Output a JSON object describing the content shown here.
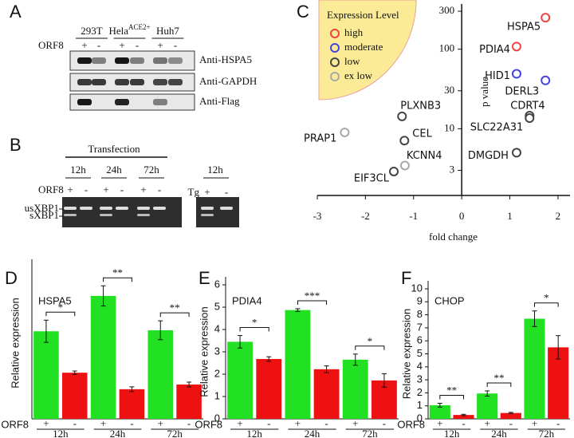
{
  "figure": {
    "A": {
      "panel": "A",
      "row_label": "ORF8",
      "cell_lines": [
        {
          "name": "293T"
        },
        {
          "name": "Hela",
          "sup": "ACE2+"
        },
        {
          "name": "Huh7"
        }
      ],
      "lanes": [
        "+",
        "-",
        "+",
        "-",
        "+",
        "-"
      ],
      "antibodies": [
        "Anti-HSPA5",
        "Anti-GAPDH",
        "Anti-Flag"
      ]
    },
    "B": {
      "panel": "B",
      "header": "Transfection",
      "times": [
        "12h",
        "24h",
        "72h"
      ],
      "row_label": "ORF8",
      "lanes": [
        "+",
        "-",
        "+",
        "-",
        "+",
        "-"
      ],
      "bands": [
        "usXBP1",
        "sXBP1"
      ],
      "control": {
        "time": "12h",
        "row_label": "Tg",
        "lanes": [
          "+",
          "-"
        ]
      }
    }
  },
  "chart_data": [
    {
      "type": "scatter",
      "panel": "C",
      "xlabel": "fold change",
      "ylabel": "p value",
      "xlim": [
        -3,
        2.25
      ],
      "ylim": [
        1.45,
        370
      ],
      "xticks": [
        -3,
        -2,
        -1,
        0,
        1,
        2
      ],
      "yticks": [
        3,
        10,
        30,
        100,
        300
      ],
      "log_y": true,
      "legend": {
        "title": "Expression Level",
        "position": "upper left"
      },
      "series": [
        {
          "name": "high",
          "color": "#ee4444",
          "x": [
            1.74,
            1.14
          ],
          "values": [
            249,
            108
          ],
          "labels": [
            "HSPA5",
            "PDIA4"
          ]
        },
        {
          "name": "moderate",
          "color": "#4444dd",
          "x": [
            1.14,
            1.74
          ],
          "values": [
            49,
            40.5
          ],
          "labels": [
            "HID1",
            "DERL3"
          ]
        },
        {
          "name": "low",
          "color": "#444444",
          "x": [
            1.41,
            1.41,
            1.14,
            -1.24,
            -1.19,
            -1.41
          ],
          "values": [
            14.6,
            13.6,
            5,
            14.3,
            7.1,
            2.9
          ],
          "labels": [
            "CDRT4",
            "SLC22A31",
            "DMGDH",
            "PLXNB3",
            "CEL",
            "EIF3CL"
          ]
        },
        {
          "name": "ex low",
          "color": "#a8a8a8",
          "x": [
            -1.18,
            -2.43
          ],
          "values": [
            3.45,
            9
          ],
          "labels": [
            "KCNN4",
            "PRAP1"
          ]
        }
      ]
    },
    {
      "type": "bar",
      "panel": "D",
      "title": "HSPA5",
      "ylabel": "Relative expression",
      "group_label": "ORF8",
      "categories": [
        "12h",
        "24h",
        "72h"
      ],
      "ylim": [
        0,
        4.5
      ],
      "series": [
        {
          "name": "+",
          "color": "#22e022",
          "values": [
            2.6,
            3.65,
            2.63
          ],
          "errors": [
            0.33,
            0.3,
            0.28
          ]
        },
        {
          "name": "-",
          "color": "#ee1111",
          "values": [
            1.37,
            0.88,
            1.02
          ],
          "errors": [
            0.05,
            0.07,
            0.07
          ]
        }
      ],
      "annotations": [
        "*",
        "**",
        "**"
      ]
    },
    {
      "type": "bar",
      "panel": "E",
      "title": "PDIA4",
      "ylabel": "Relative expression",
      "group_label": "ORF8",
      "categories": [
        "12h",
        "24h",
        "72h"
      ],
      "ylim": [
        0,
        6
      ],
      "yticks": [
        0,
        1,
        2,
        3,
        4,
        5,
        6
      ],
      "series": [
        {
          "name": "+",
          "color": "#22e022",
          "values": [
            3.45,
            4.87,
            2.65
          ],
          "errors": [
            0.28,
            0.06,
            0.25
          ]
        },
        {
          "name": "-",
          "color": "#ee1111",
          "values": [
            2.68,
            2.22,
            1.72
          ],
          "errors": [
            0.1,
            0.15,
            0.3
          ]
        }
      ],
      "annotations": [
        "*",
        "***",
        "*"
      ]
    },
    {
      "type": "bar",
      "panel": "F",
      "title": "CHOP",
      "ylabel": "Relative expression",
      "group_label": "ORF8",
      "categories": [
        "12h",
        "24h",
        "72h"
      ],
      "ylim": [
        0,
        10
      ],
      "yticks": [
        0,
        1,
        2,
        3,
        4,
        5,
        6,
        7,
        8,
        9,
        10
      ],
      "series": [
        {
          "name": "+",
          "color": "#22e022",
          "values": [
            1.05,
            1.95,
            7.7
          ],
          "errors": [
            0.15,
            0.2,
            0.6
          ]
        },
        {
          "name": "-",
          "color": "#ee1111",
          "values": [
            0.3,
            0.45,
            5.5
          ],
          "errors": [
            0.05,
            0.05,
            0.9
          ]
        }
      ],
      "annotations": [
        "**",
        "**",
        "*"
      ]
    }
  ]
}
